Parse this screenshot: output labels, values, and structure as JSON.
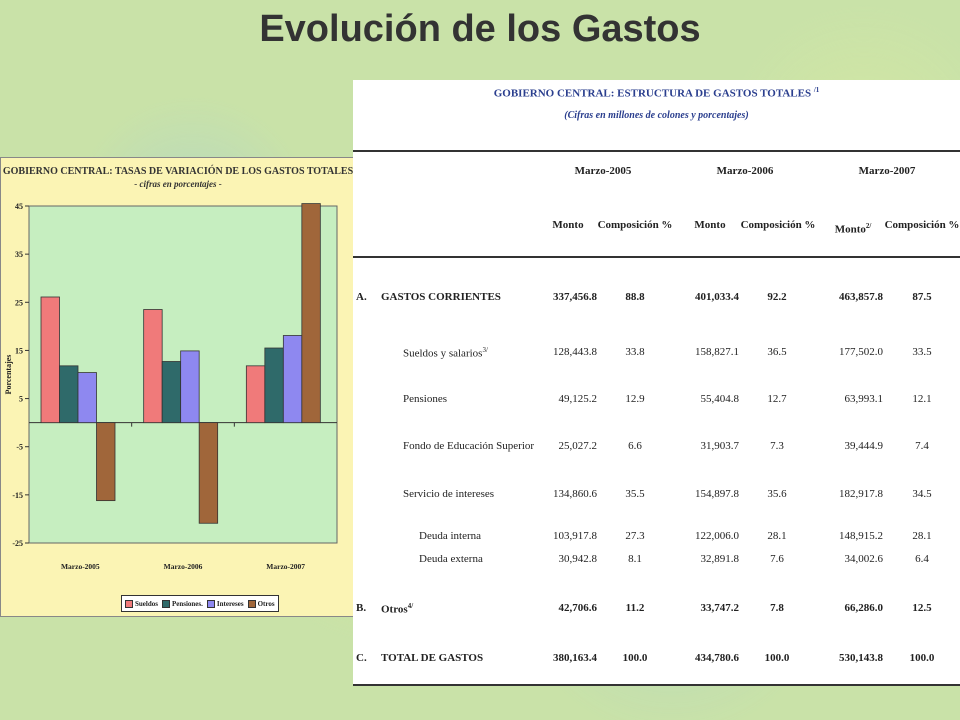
{
  "slide_title": "Evolución de los Gastos",
  "chart_data": {
    "type": "bar",
    "title": "GOBIERNO CENTRAL: TASAS DE VARIACIÓN DE LOS GASTOS TOTALES",
    "subtitle": "- cifras en porcentajes -",
    "ylabel": "Porcentajes",
    "ylim": [
      -25,
      45
    ],
    "yticks": [
      -25,
      -15,
      -5,
      5,
      15,
      25,
      35,
      45
    ],
    "grid": false,
    "legend_position": "bottom",
    "categories": [
      "Marzo-2005",
      "Marzo-2006",
      "Marzo-2007"
    ],
    "series": [
      {
        "name": "Sueldos",
        "color": "#f07a7a",
        "values": [
          26.1,
          23.5,
          11.8
        ]
      },
      {
        "name": "Pensiones.",
        "color": "#2f6a6a",
        "values": [
          11.8,
          12.7,
          15.5
        ]
      },
      {
        "name": "Intereses",
        "color": "#8e88f0",
        "values": [
          10.4,
          14.9,
          18.1
        ]
      },
      {
        "name": "Otros",
        "color": "#a0663a",
        "values": [
          -16.2,
          -20.9,
          45.5
        ]
      }
    ]
  },
  "table": {
    "title": "GOBIERNO CENTRAL:  ESTRUCTURA DE GASTOS TOTALES",
    "title_note": "/1",
    "subtitle": "(Cifras en millones de colones y porcentajes)",
    "periods": [
      "Marzo-2005",
      "Marzo-2006",
      "Marzo-2007"
    ],
    "col_headers": [
      "Monto",
      "Composición %",
      "Monto",
      "Composición %",
      "Monto",
      "Composición %"
    ],
    "monto_note_2007": "2/",
    "rows": [
      {
        "letter": "A.",
        "label": "GASTOS CORRIENTES",
        "note": "",
        "bold": true,
        "indent": 0,
        "values": [
          "337,456.8",
          "88.8",
          "401,033.4",
          "92.2",
          "463,857.8",
          "87.5"
        ]
      },
      {
        "letter": "",
        "label": "Sueldos y salarios",
        "note": "3/",
        "bold": false,
        "indent": 1,
        "values": [
          "128,443.8",
          "33.8",
          "158,827.1",
          "36.5",
          "177,502.0",
          "33.5"
        ]
      },
      {
        "letter": "",
        "label": "Pensiones",
        "note": "",
        "bold": false,
        "indent": 1,
        "values": [
          "49,125.2",
          "12.9",
          "55,404.8",
          "12.7",
          "63,993.1",
          "12.1"
        ]
      },
      {
        "letter": "",
        "label": "Fondo de Educación Superior",
        "note": "",
        "bold": false,
        "indent": 1,
        "values": [
          "25,027.2",
          "6.6",
          "31,903.7",
          "7.3",
          "39,444.9",
          "7.4"
        ]
      },
      {
        "letter": "",
        "label": "Servicio de intereses",
        "note": "",
        "bold": false,
        "indent": 1,
        "values": [
          "134,860.6",
          "35.5",
          "154,897.8",
          "35.6",
          "182,917.8",
          "34.5"
        ]
      },
      {
        "letter": "",
        "label": "Deuda interna",
        "note": "",
        "bold": false,
        "indent": 2,
        "values": [
          "103,917.8",
          "27.3",
          "122,006.0",
          "28.1",
          "148,915.2",
          "28.1"
        ]
      },
      {
        "letter": "",
        "label": "Deuda externa",
        "note": "",
        "bold": false,
        "indent": 2,
        "values": [
          "30,942.8",
          "8.1",
          "32,891.8",
          "7.6",
          "34,002.6",
          "6.4"
        ]
      },
      {
        "letter": "B.",
        "label": "Otros",
        "note": "4/",
        "bold": true,
        "indent": 0,
        "values": [
          "42,706.6",
          "11.2",
          "33,747.2",
          "7.8",
          "66,286.0",
          "12.5"
        ]
      },
      {
        "letter": "C.",
        "label": "TOTAL DE GASTOS",
        "note": "",
        "bold": true,
        "indent": 0,
        "values": [
          "380,163.4",
          "100.0",
          "434,780.6",
          "100.0",
          "530,143.8",
          "100.0"
        ]
      }
    ]
  }
}
